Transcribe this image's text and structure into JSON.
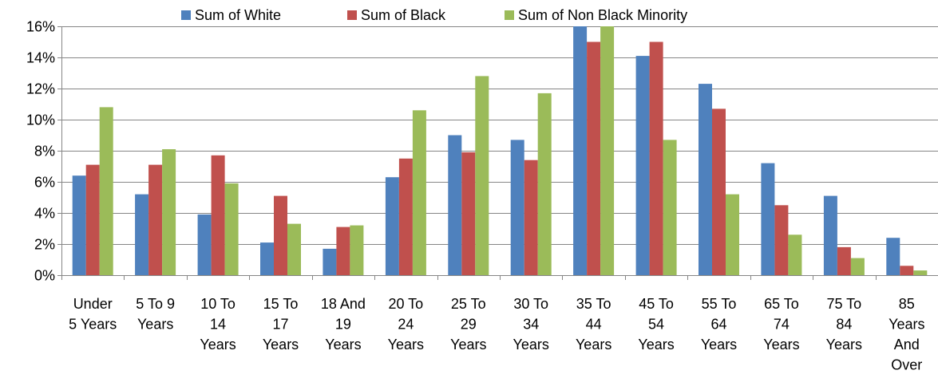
{
  "chart_data": {
    "type": "bar",
    "title": "",
    "xlabel": "",
    "ylabel": "",
    "ylim": [
      0,
      16
    ],
    "y_ticks": [
      0,
      2,
      4,
      6,
      8,
      10,
      12,
      14,
      16
    ],
    "y_tick_suffix": "%",
    "grid": true,
    "legend_position": "top",
    "categories": [
      [
        "Under",
        "5 Years"
      ],
      [
        "5 To 9",
        "Years"
      ],
      [
        "10 To",
        "14",
        "Years"
      ],
      [
        "15 To",
        "17",
        "Years"
      ],
      [
        "18 And",
        "19",
        "Years"
      ],
      [
        "20 To",
        "24",
        "Years"
      ],
      [
        "25 To",
        "29",
        "Years"
      ],
      [
        "30 To",
        "34",
        "Years"
      ],
      [
        "35 To",
        "44",
        "Years"
      ],
      [
        "45 To",
        "54",
        "Years"
      ],
      [
        "55 To",
        "64",
        "Years"
      ],
      [
        "65 To",
        "74",
        "Years"
      ],
      [
        "75 To",
        "84",
        "Years"
      ],
      [
        "85",
        "Years",
        "And",
        "Over"
      ]
    ],
    "series": [
      {
        "name": "Sum of White",
        "color": "#4F81BD",
        "values": [
          6.4,
          5.2,
          3.9,
          2.1,
          1.7,
          6.3,
          9.0,
          8.7,
          16.0,
          14.1,
          12.3,
          7.2,
          5.1,
          2.4
        ]
      },
      {
        "name": "Sum of Black",
        "color": "#C0504D",
        "values": [
          7.1,
          7.1,
          7.7,
          5.1,
          3.1,
          7.5,
          7.9,
          7.4,
          15.0,
          15.0,
          10.7,
          4.5,
          1.8,
          0.6
        ]
      },
      {
        "name": "Sum of Non Black Minority",
        "color": "#9BBB59",
        "values": [
          10.8,
          8.1,
          5.9,
          3.3,
          3.2,
          10.6,
          12.8,
          11.7,
          16.0,
          8.7,
          5.2,
          2.6,
          1.1,
          0.3
        ]
      }
    ]
  }
}
